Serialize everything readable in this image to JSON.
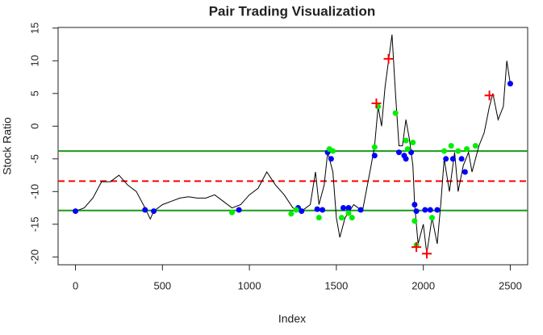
{
  "chart_data": {
    "type": "line",
    "title": "Pair Trading Visualization",
    "x_label": "Index",
    "y_label": "Stock Ratio",
    "xlim": [
      -100,
      2600
    ],
    "ylim": [
      -21.2,
      15.1
    ],
    "xticks": [
      0,
      500,
      1000,
      1500,
      2000,
      2500
    ],
    "yticks": [
      -20,
      -15,
      -10,
      -5,
      0,
      5,
      10,
      15
    ],
    "hlines": [
      {
        "value": -3.8,
        "color": "#1a9a1a",
        "dashed": false
      },
      {
        "value": -8.4,
        "color": "#ff0000",
        "dashed": true
      },
      {
        "value": -12.9,
        "color": "#1a9a1a",
        "dashed": false
      }
    ],
    "series": [
      {
        "kind": "line",
        "color": "#000000",
        "x": [
          0,
          50,
          100,
          150,
          200,
          250,
          300,
          350,
          400,
          430,
          450,
          500,
          550,
          600,
          650,
          700,
          750,
          800,
          850,
          900,
          950,
          1000,
          1050,
          1100,
          1150,
          1200,
          1250,
          1300,
          1350,
          1380,
          1400,
          1430,
          1450,
          1480,
          1500,
          1520,
          1550,
          1600,
          1650,
          1700,
          1720,
          1740,
          1760,
          1780,
          1800,
          1820,
          1840,
          1860,
          1880,
          1900,
          1920,
          1940,
          1950,
          1970,
          2000,
          2020,
          2050,
          2080,
          2100,
          2120,
          2150,
          2180,
          2200,
          2230,
          2260,
          2280,
          2300,
          2320,
          2350,
          2380,
          2400,
          2430,
          2460,
          2480,
          2500
        ],
        "values": [
          -13,
          -12.5,
          -11,
          -8.5,
          -8.5,
          -7.5,
          -9,
          -10,
          -12.5,
          -14.2,
          -13,
          -12,
          -11.5,
          -11,
          -10.8,
          -11,
          -11,
          -10.5,
          -11.5,
          -12.5,
          -12,
          -10.5,
          -9.5,
          -7,
          -9,
          -10.5,
          -12.5,
          -13,
          -12,
          -7,
          -12,
          -9,
          -4,
          -7,
          -14,
          -17,
          -14,
          -12,
          -13,
          -6,
          -3,
          3,
          0,
          6,
          10,
          14,
          5,
          -3,
          -3,
          1,
          -2,
          -6,
          -12,
          -18,
          -15,
          -19.5,
          -14,
          -18,
          -12,
          -5,
          -10,
          -4,
          -10,
          -6,
          -4,
          -7,
          -5,
          -3,
          -1,
          3,
          5,
          1,
          3,
          10,
          6.5
        ]
      },
      {
        "kind": "scatter",
        "marker": "circle",
        "color": "#0000ff",
        "x": [
          0,
          400,
          450,
          940,
          1280,
          1300,
          1390,
          1420,
          1450,
          1470,
          1540,
          1570,
          1640,
          1720,
          1860,
          1890,
          1900,
          1930,
          1950,
          1960,
          2010,
          2040,
          2080,
          2130,
          2170,
          2220,
          2240,
          2500
        ],
        "values": [
          -13,
          -12.8,
          -13,
          -12.8,
          -12.5,
          -13,
          -12.7,
          -12.8,
          -4,
          -5,
          -12.5,
          -12.5,
          -12.8,
          -4.5,
          -4,
          -4.5,
          -5,
          -4,
          -12,
          -13,
          -12.8,
          -12.8,
          -12.8,
          -5,
          -5,
          -5,
          -7,
          6.5
        ]
      },
      {
        "kind": "scatter",
        "marker": "circle",
        "color": "#00ee00",
        "x": [
          900,
          1240,
          1270,
          1400,
          1460,
          1480,
          1530,
          1570,
          1590,
          1720,
          1740,
          1840,
          1900,
          1910,
          1940,
          1950,
          1960,
          2050,
          2120,
          2160,
          2200,
          2250,
          2300
        ],
        "values": [
          -13.2,
          -13.4,
          -12.8,
          -14,
          -3.5,
          -3.8,
          -14,
          -13.3,
          -14,
          -3.2,
          3,
          2,
          -2.2,
          -3.5,
          -2.5,
          -14.5,
          -18.2,
          -14,
          -3.8,
          -3,
          -3.8,
          -3.5,
          -3
        ]
      },
      {
        "kind": "scatter",
        "marker": "plus",
        "color": "#ff0000",
        "x": [
          1730,
          1800,
          1960,
          2020,
          2380
        ],
        "values": [
          3.5,
          10.3,
          -18.5,
          -19.5,
          4.7
        ]
      }
    ]
  }
}
